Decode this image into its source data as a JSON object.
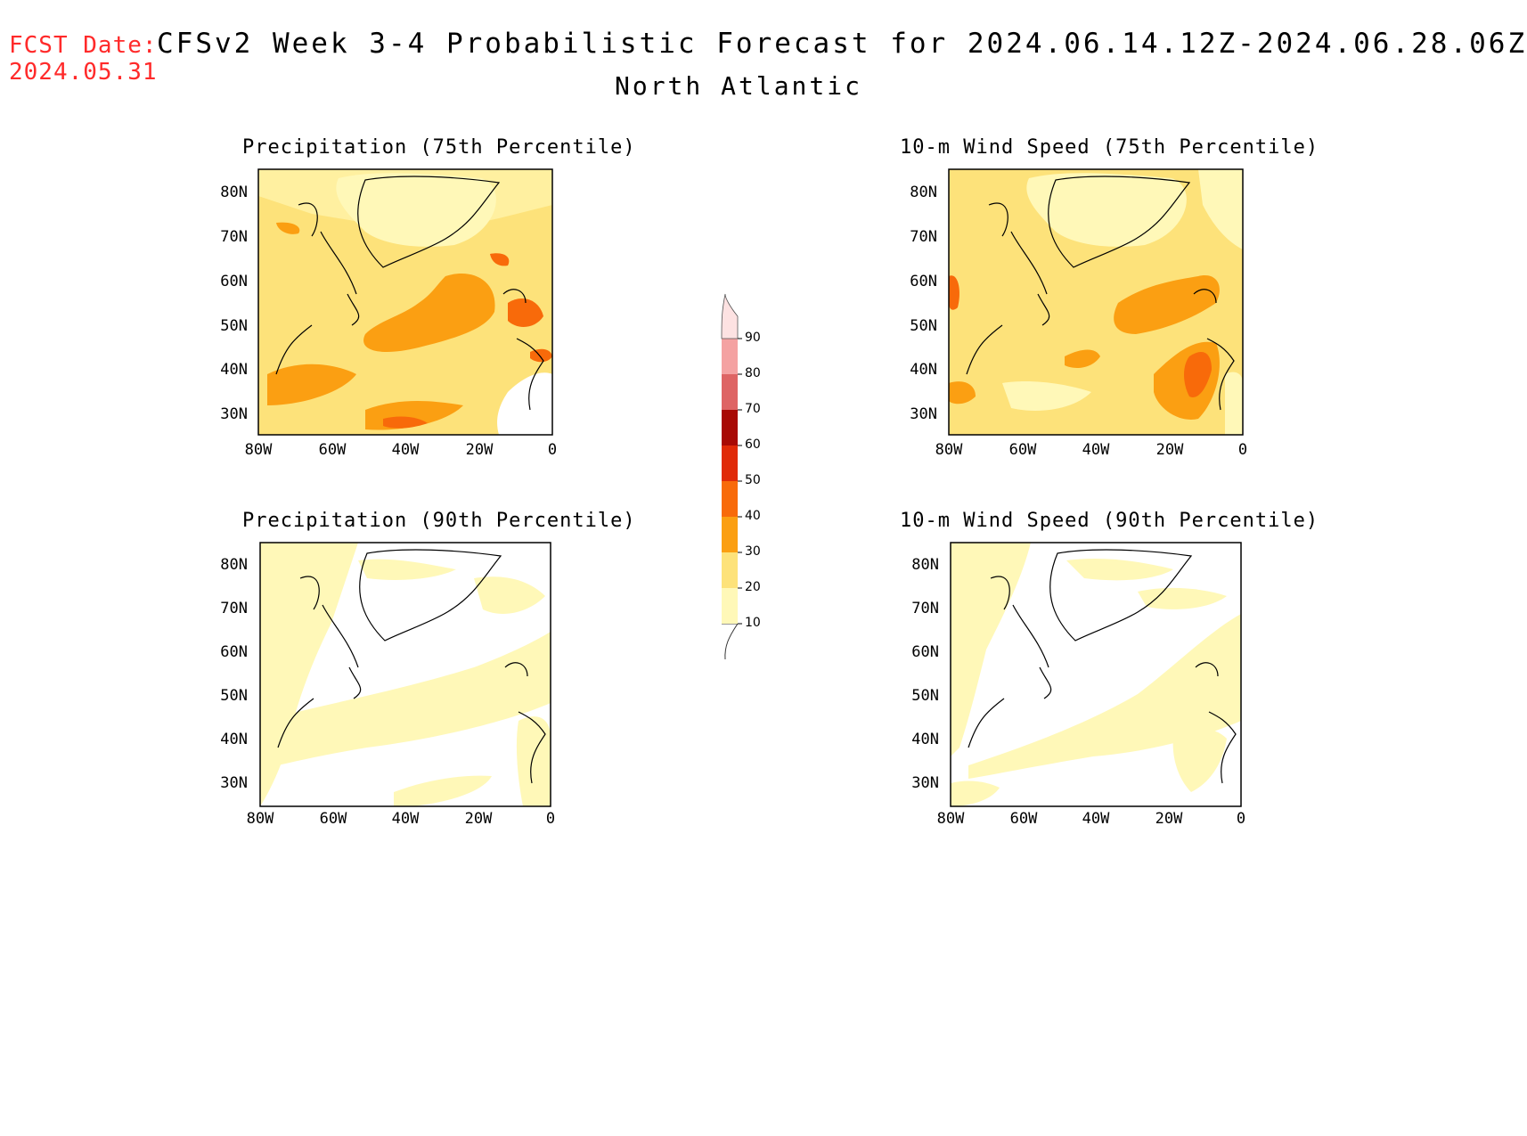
{
  "header": {
    "fcst_label": "FCST Date:",
    "fcst_date": "2024.05.31",
    "title": "CFSv2 Week 3-4 Probabilistic Forecast for 2024.06.14.12Z-2024.06.28.06Z",
    "region": "North Atlantic"
  },
  "panels": [
    {
      "title": "Precipitation (75th Percentile)"
    },
    {
      "title": "10-m Wind Speed (75th Percentile)"
    },
    {
      "title": "Precipitation (90th Percentile)"
    },
    {
      "title": "10-m Wind Speed (90th Percentile)"
    }
  ],
  "axes": {
    "lat_ticks": [
      "80N",
      "70N",
      "60N",
      "50N",
      "40N",
      "30N"
    ],
    "lon_ticks": [
      "80W",
      "60W",
      "40W",
      "20W",
      "0"
    ]
  },
  "colorbar": {
    "levels": [
      "10",
      "20",
      "30",
      "40",
      "50",
      "60",
      "70",
      "80",
      "90"
    ],
    "colors": [
      "#fff8b8",
      "#fde27a",
      "#fb9f12",
      "#f86a0a",
      "#e02a08",
      "#a80a05",
      "#de6464",
      "#f4a2a2",
      "#fde2e2"
    ]
  }
}
